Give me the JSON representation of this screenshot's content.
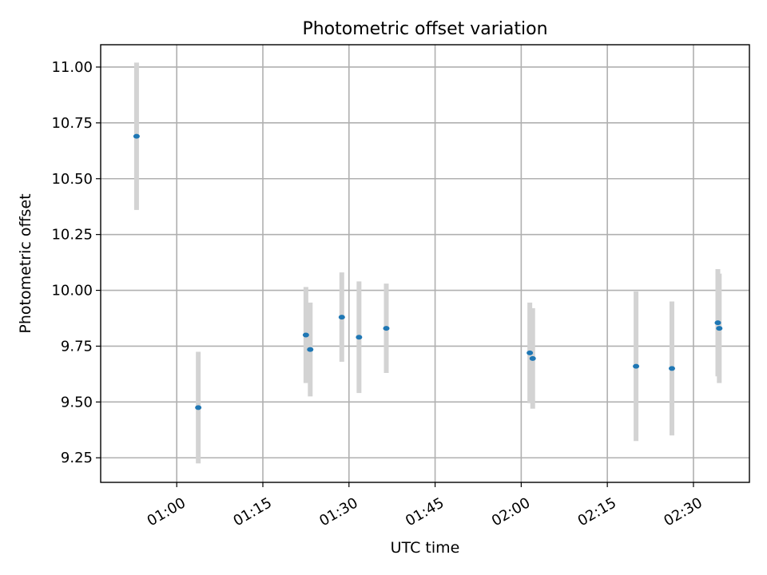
{
  "chart_data": {
    "type": "scatter",
    "title": "Photometric offset variation",
    "xlabel": "UTC time",
    "ylabel": "Photometric offset",
    "x_axis_kind": "time",
    "xlim": [
      "00:46:45",
      "02:39:45"
    ],
    "ylim": [
      9.14,
      11.1
    ],
    "xticks": [
      "01:00",
      "01:15",
      "01:30",
      "01:45",
      "02:00",
      "02:15",
      "02:30"
    ],
    "yticks": [
      "9.25",
      "9.50",
      "9.75",
      "10.00",
      "10.25",
      "10.50",
      "10.75",
      "11.00"
    ],
    "grid": true,
    "point_color": "#1f77b4",
    "errorbar_color": "#d3d3d3",
    "series": [
      {
        "points": [
          {
            "x": "00:53:00",
            "y": 10.69,
            "err": 0.33
          },
          {
            "x": "01:03:45",
            "y": 9.475,
            "err": 0.25
          },
          {
            "x": "01:22:30",
            "y": 9.8,
            "err": 0.215
          },
          {
            "x": "01:23:15",
            "y": 9.735,
            "err": 0.21
          },
          {
            "x": "01:28:45",
            "y": 9.88,
            "err": 0.2
          },
          {
            "x": "01:31:45",
            "y": 9.79,
            "err": 0.25
          },
          {
            "x": "01:36:30",
            "y": 9.83,
            "err": 0.2
          },
          {
            "x": "02:01:30",
            "y": 9.72,
            "err": 0.225
          },
          {
            "x": "02:02:00",
            "y": 9.695,
            "err": 0.225
          },
          {
            "x": "02:20:00",
            "y": 9.66,
            "err": 0.335
          },
          {
            "x": "02:26:15",
            "y": 9.65,
            "err": 0.3
          },
          {
            "x": "02:34:15",
            "y": 9.855,
            "err": 0.24
          },
          {
            "x": "02:34:30",
            "y": 9.83,
            "err": 0.245
          }
        ]
      }
    ]
  }
}
